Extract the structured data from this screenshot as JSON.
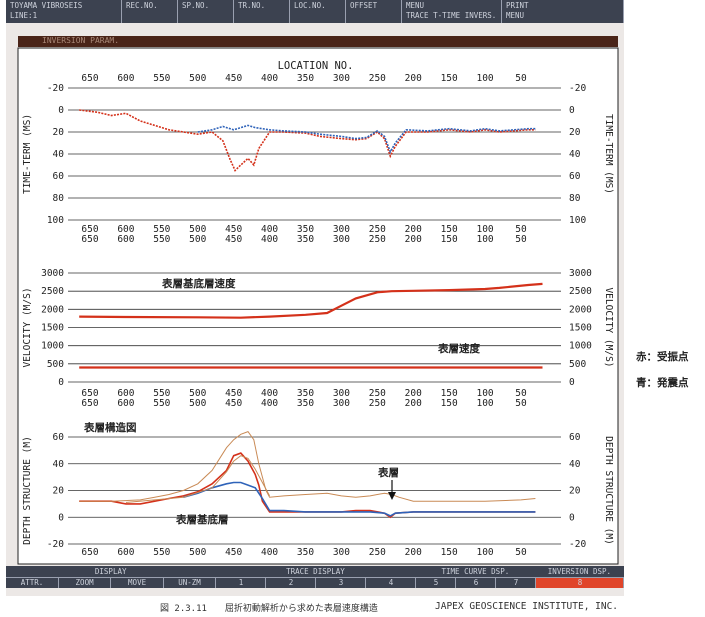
{
  "header": {
    "cells": [
      {
        "top": "TOYAMA VIBROSEIS",
        "bottom": "LINE:1"
      },
      {
        "top": "REC.NO.",
        "bottom": ""
      },
      {
        "top": "SP.NO.",
        "bottom": ""
      },
      {
        "top": "TR.NO.",
        "bottom": ""
      },
      {
        "top": "LOC.NO.",
        "bottom": ""
      },
      {
        "top": "OFFSET",
        "bottom": ""
      },
      {
        "top": "MENU",
        "bottom": "TRACE T-TIME INVERS."
      },
      {
        "top": "PRINT",
        "bottom": "MENU"
      }
    ]
  },
  "window_title": "INVERSION PARAM.",
  "footer": {
    "display": {
      "title": "DISPLAY",
      "buttons": [
        "ATTR.",
        "ZOOM",
        "MOVE",
        "UN-ZM"
      ]
    },
    "trace_display": {
      "title": "TRACE DISPLAY",
      "buttons": [
        "1",
        "2",
        "3",
        "4"
      ]
    },
    "time_curve": {
      "title": "TIME CURVE DSP.",
      "buttons": [
        "5",
        "6",
        "7"
      ]
    },
    "inversion": {
      "title": "INVERSION DSP.",
      "buttons": [
        "8"
      ]
    }
  },
  "legend": {
    "red": "赤：受振点",
    "blue": "青：発震点"
  },
  "caption": {
    "figure": "図 2.3.11　　屈折初動解析から求めた表層速度構造",
    "company": "JAPEX GEOSCIENCE INSTITUTE, INC."
  },
  "colors": {
    "red": "#d4311a",
    "blue": "#2f63b9",
    "orange": "#c98a55",
    "header": "#3c4250",
    "title_bar": "#4a2418",
    "footer_highlight": "#e0452a"
  },
  "chart_data": [
    {
      "type": "line",
      "xlabel": "LOCATION NO.",
      "ylabel": "TIME-TERM (MS)",
      "x_ticks": [
        650,
        600,
        550,
        500,
        450,
        400,
        350,
        300,
        250,
        200,
        150,
        100,
        50
      ],
      "y_ticks": [
        -20,
        0,
        20,
        40,
        60,
        80,
        100
      ],
      "xlim": [
        670,
        0
      ],
      "ylim": [
        -20,
        100
      ],
      "y_inverted": true,
      "series": [
        {
          "color": "red",
          "x": [
            665,
            640,
            620,
            600,
            580,
            560,
            540,
            520,
            500,
            480,
            465,
            455,
            448,
            440,
            430,
            422,
            415,
            400,
            380,
            350,
            330,
            300,
            280,
            265,
            250,
            240,
            232,
            225,
            210,
            180,
            150,
            120,
            100,
            80,
            60,
            40,
            30
          ],
          "y": [
            0,
            2,
            5,
            3,
            10,
            14,
            18,
            20,
            22,
            20,
            28,
            45,
            55,
            50,
            44,
            50,
            35,
            20,
            20,
            21,
            24,
            26,
            27,
            26,
            20,
            26,
            42,
            33,
            20,
            20,
            18,
            20,
            18,
            20,
            19,
            18,
            18
          ]
        },
        {
          "color": "blue",
          "x": [
            500,
            480,
            465,
            450,
            440,
            430,
            420,
            400,
            380,
            350,
            330,
            300,
            280,
            265,
            250,
            240,
            232,
            225,
            210,
            180,
            150,
            120,
            100,
            80,
            60,
            40,
            30
          ],
          "y": [
            20,
            18,
            15,
            18,
            16,
            14,
            16,
            18,
            19,
            20,
            22,
            24,
            26,
            25,
            19,
            24,
            38,
            30,
            18,
            19,
            17,
            19,
            17,
            19,
            18,
            17,
            17
          ]
        }
      ]
    },
    {
      "type": "line",
      "ylabel": "VELOCITY (M/S)",
      "x_ticks": [
        650,
        600,
        550,
        500,
        450,
        400,
        350,
        300,
        250,
        200,
        150,
        100,
        50
      ],
      "y_ticks": [
        0,
        500,
        1000,
        1500,
        2000,
        2500,
        3000
      ],
      "xlim": [
        670,
        0
      ],
      "ylim": [
        0,
        3000
      ],
      "annotations": [
        "表層基底層速度",
        "表層速度"
      ],
      "series": [
        {
          "name": "表層基底層速度",
          "color": "red",
          "x": [
            665,
            600,
            500,
            440,
            400,
            350,
            320,
            300,
            280,
            250,
            230,
            200,
            150,
            100,
            80,
            40,
            20
          ],
          "y": [
            1800,
            1790,
            1780,
            1770,
            1800,
            1850,
            1900,
            2100,
            2300,
            2470,
            2500,
            2510,
            2530,
            2560,
            2590,
            2670,
            2700
          ]
        },
        {
          "name": "表層速度",
          "color": "red",
          "x": [
            665,
            20
          ],
          "y": [
            400,
            400
          ]
        }
      ]
    },
    {
      "type": "line",
      "ylabel": "DEPTH STRUCTURE (M)",
      "x_ticks": [
        650,
        600,
        550,
        500,
        450,
        400,
        350,
        300,
        250,
        200,
        150,
        100,
        50
      ],
      "y_ticks": [
        -20,
        0,
        20,
        40,
        60
      ],
      "xlim": [
        670,
        0
      ],
      "ylim": [
        -20,
        60
      ],
      "annotations": [
        "表層構造図",
        "表層",
        "表層基底層"
      ],
      "series": [
        {
          "color": "red",
          "x": [
            665,
            620,
            600,
            580,
            560,
            540,
            520,
            500,
            480,
            460,
            450,
            440,
            430,
            420,
            415,
            410,
            400,
            380,
            350,
            320,
            300,
            280,
            260,
            240,
            232,
            225,
            200,
            150,
            100,
            50,
            30
          ],
          "y": [
            12,
            12,
            10,
            10,
            12,
            14,
            16,
            19,
            25,
            35,
            46,
            48,
            42,
            32,
            24,
            12,
            4,
            4,
            4,
            4,
            4,
            5,
            5,
            3,
            0,
            3,
            4,
            4,
            4,
            4,
            4
          ]
        },
        {
          "color": "blue",
          "x": [
            520,
            500,
            480,
            460,
            450,
            440,
            430,
            420,
            410,
            400,
            380,
            350,
            300,
            260,
            240,
            232,
            225,
            200,
            150,
            100,
            50,
            30
          ],
          "y": [
            15,
            18,
            22,
            25,
            26,
            26,
            24,
            22,
            14,
            5,
            5,
            4,
            4,
            4,
            3,
            1,
            3,
            4,
            4,
            4,
            4,
            4
          ]
        },
        {
          "color": "orange",
          "x": [
            665,
            620,
            580,
            560,
            540,
            520,
            500,
            480,
            460,
            450,
            440,
            430,
            422,
            415,
            405,
            400,
            380,
            350,
            320,
            300,
            280,
            260,
            240,
            230,
            220,
            200,
            150,
            100,
            50,
            30
          ],
          "y": [
            12,
            12,
            13,
            15,
            17,
            20,
            25,
            35,
            52,
            58,
            62,
            64,
            58,
            40,
            20,
            15,
            16,
            17,
            18,
            16,
            15,
            16,
            18,
            17,
            15,
            12,
            12,
            12,
            13,
            14
          ]
        },
        {
          "color": "orange",
          "x": [
            600,
            560,
            520,
            480,
            460,
            450,
            440,
            430,
            420,
            410,
            400
          ],
          "y": [
            11,
            13,
            15,
            22,
            34,
            42,
            46,
            44,
            36,
            26,
            16
          ]
        }
      ]
    }
  ]
}
